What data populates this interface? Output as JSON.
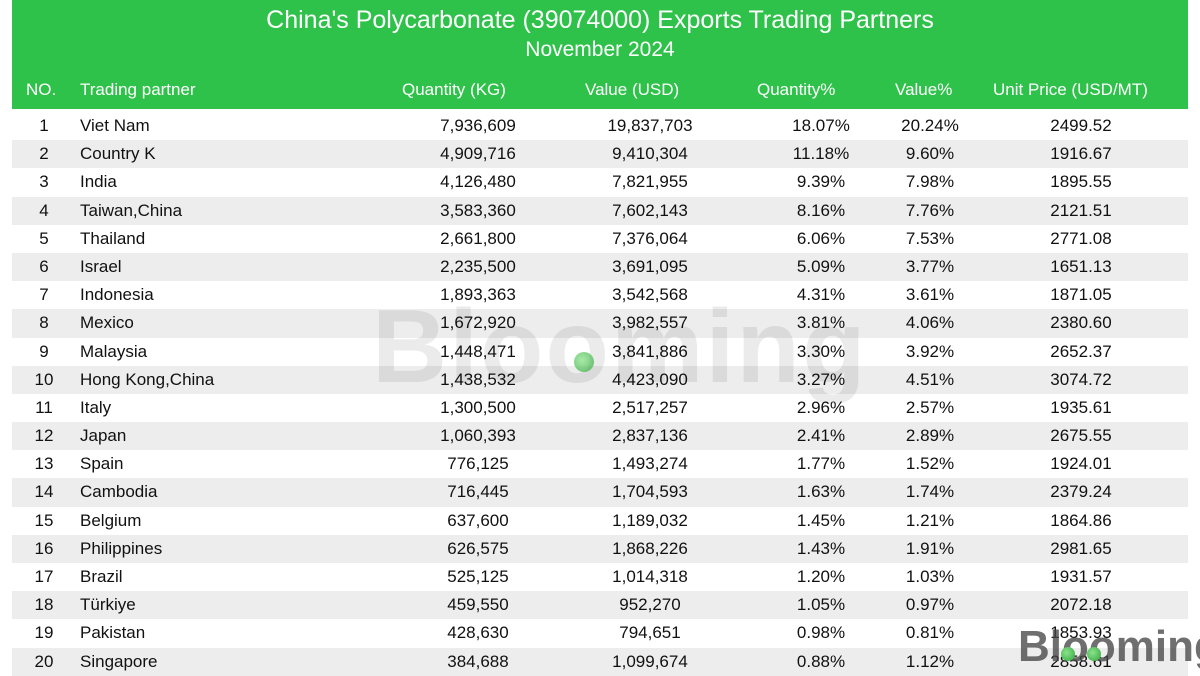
{
  "chart_data": {
    "type": "table",
    "title": "China's Polycarbonate (39074000) Exports Trading Partners",
    "subtitle": "November 2024",
    "columns": [
      "NO.",
      "Trading partner",
      "Quantity (KG)",
      "Value (USD)",
      "Quantity%",
      "Value%",
      "Unit Price (USD/MT)"
    ],
    "rows": [
      [
        "1",
        "Viet Nam",
        "7,936,609",
        "19,837,703",
        "18.07%",
        "20.24%",
        "2499.52"
      ],
      [
        "2",
        "Country K",
        "4,909,716",
        "9,410,304",
        "11.18%",
        "9.60%",
        "1916.67"
      ],
      [
        "3",
        "India",
        "4,126,480",
        "7,821,955",
        "9.39%",
        "7.98%",
        "1895.55"
      ],
      [
        "4",
        "Taiwan,China",
        "3,583,360",
        "7,602,143",
        "8.16%",
        "7.76%",
        "2121.51"
      ],
      [
        "5",
        "Thailand",
        "2,661,800",
        "7,376,064",
        "6.06%",
        "7.53%",
        "2771.08"
      ],
      [
        "6",
        "Israel",
        "2,235,500",
        "3,691,095",
        "5.09%",
        "3.77%",
        "1651.13"
      ],
      [
        "7",
        "Indonesia",
        "1,893,363",
        "3,542,568",
        "4.31%",
        "3.61%",
        "1871.05"
      ],
      [
        "8",
        "Mexico",
        "1,672,920",
        "3,982,557",
        "3.81%",
        "4.06%",
        "2380.60"
      ],
      [
        "9",
        "Malaysia",
        "1,448,471",
        "3,841,886",
        "3.30%",
        "3.92%",
        "2652.37"
      ],
      [
        "10",
        "Hong Kong,China",
        "1,438,532",
        "4,423,090",
        "3.27%",
        "4.51%",
        "3074.72"
      ],
      [
        "11",
        "Italy",
        "1,300,500",
        "2,517,257",
        "2.96%",
        "2.57%",
        "1935.61"
      ],
      [
        "12",
        "Japan",
        "1,060,393",
        "2,837,136",
        "2.41%",
        "2.89%",
        "2675.55"
      ],
      [
        "13",
        "Spain",
        "776,125",
        "1,493,274",
        "1.77%",
        "1.52%",
        "1924.01"
      ],
      [
        "14",
        "Cambodia",
        "716,445",
        "1,704,593",
        "1.63%",
        "1.74%",
        "2379.24"
      ],
      [
        "15",
        "Belgium",
        "637,600",
        "1,189,032",
        "1.45%",
        "1.21%",
        "1864.86"
      ],
      [
        "16",
        "Philippines",
        "626,575",
        "1,868,226",
        "1.43%",
        "1.91%",
        "2981.65"
      ],
      [
        "17",
        "Brazil",
        "525,125",
        "1,014,318",
        "1.20%",
        "1.03%",
        "1931.57"
      ],
      [
        "18",
        "Türkiye",
        "459,550",
        "952,270",
        "1.05%",
        "0.97%",
        "2072.18"
      ],
      [
        "19",
        "Pakistan",
        "428,630",
        "794,651",
        "0.98%",
        "0.81%",
        "1853.93"
      ],
      [
        "20",
        "Singapore",
        "384,688",
        "1,099,674",
        "0.88%",
        "1.12%",
        "2858.61"
      ]
    ]
  },
  "watermark": "Blooming",
  "logo": "Blooming",
  "colors": {
    "header": "#2fc24a",
    "header_text": "#ffffff",
    "row_alt": "#ededed",
    "text": "#111111"
  }
}
